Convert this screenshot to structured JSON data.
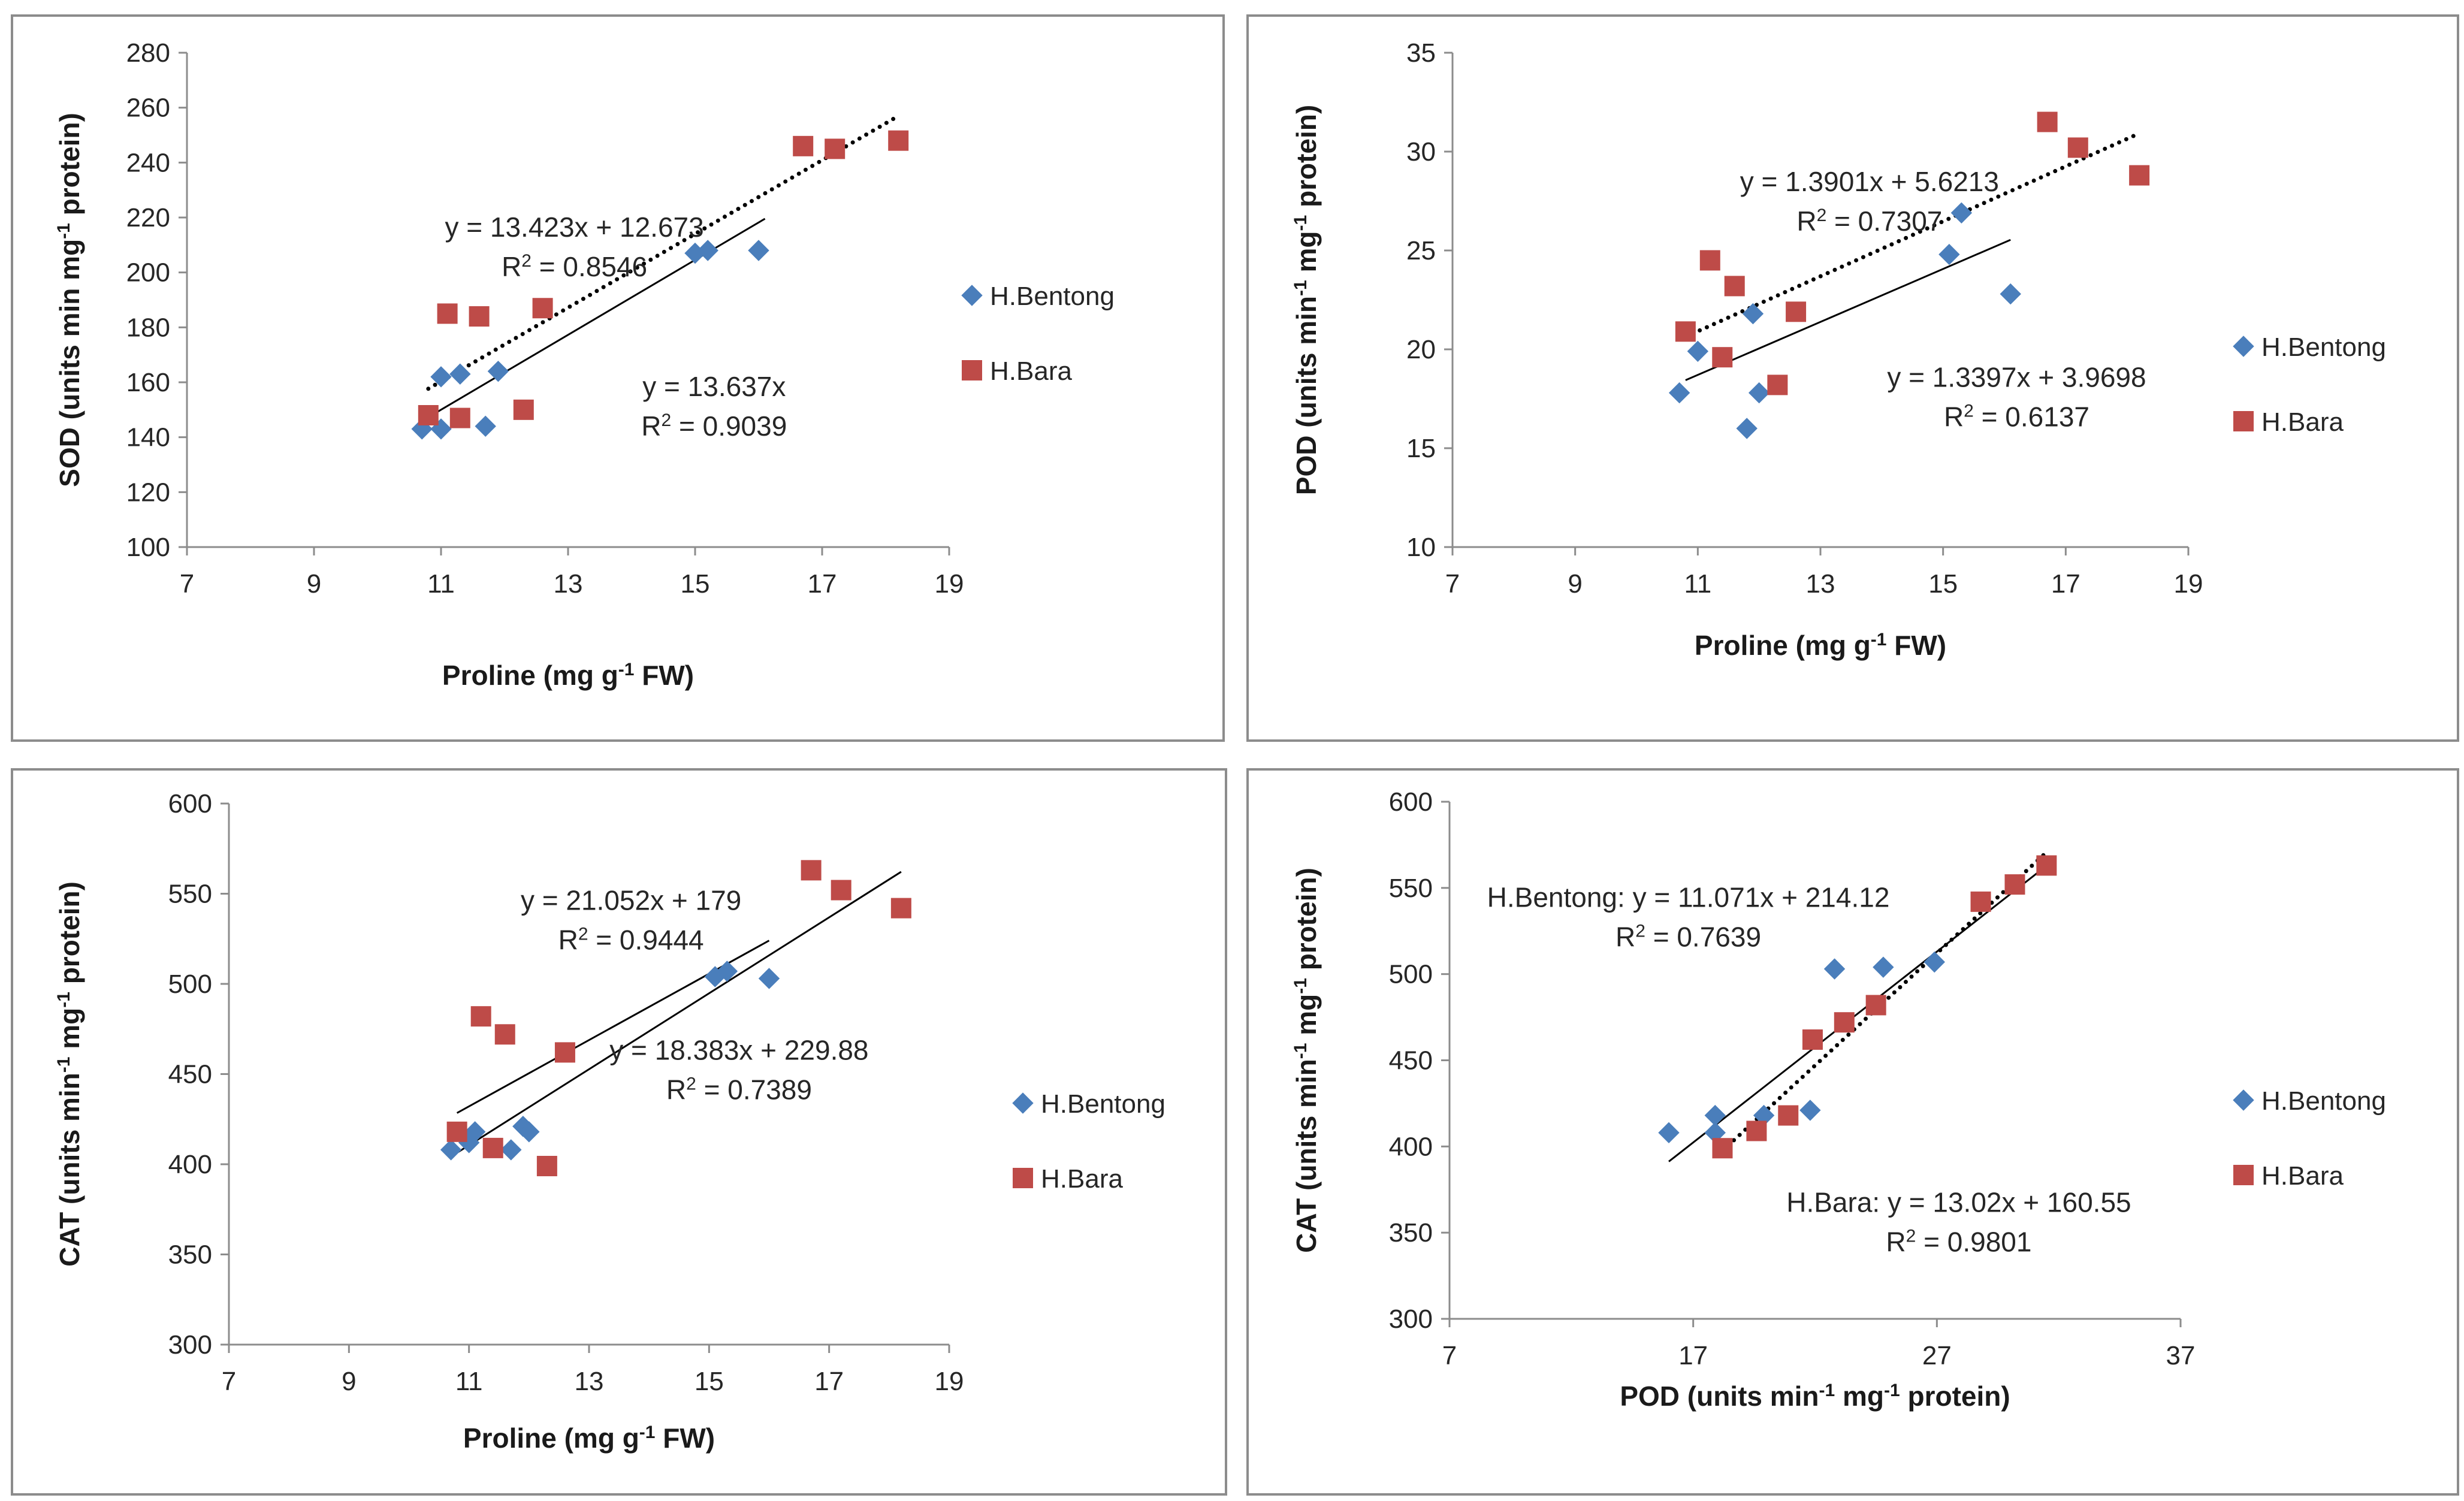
{
  "chart_data": [
    {
      "type": "scatter",
      "title": "",
      "xlabel": "Proline (mg g-1 FW)",
      "xlabel_parts": [
        "Proline (mg g",
        "-1",
        " FW)"
      ],
      "ylabel": "SOD (units min mg-1 protein)",
      "ylabel_parts": [
        "SOD (units min mg",
        "-1",
        " protein)"
      ],
      "xlim": [
        7,
        19
      ],
      "ylim": [
        100,
        280
      ],
      "xticks": [
        7,
        9,
        11,
        13,
        15,
        17,
        19
      ],
      "yticks": [
        100,
        120,
        140,
        160,
        180,
        200,
        220,
        240,
        260,
        280
      ],
      "legend": "right",
      "series": [
        {
          "name": "H.Bentong",
          "marker": "diamond",
          "color": "#4a7ebb",
          "x": [
            10.7,
            11.0,
            11.0,
            11.3,
            11.7,
            11.9,
            15.0,
            15.2,
            16.0
          ],
          "y": [
            143,
            143,
            162,
            163,
            144,
            164,
            207,
            208,
            208
          ],
          "trend": {
            "slope": 13.637,
            "intercept": 0,
            "from": 10.8,
            "to": 16.1,
            "style": "solid"
          }
        },
        {
          "name": "H.Bara",
          "marker": "square",
          "color": "#be4b48",
          "x": [
            10.8,
            11.1,
            11.3,
            11.6,
            12.3,
            12.6,
            16.7,
            17.2,
            18.2
          ],
          "y": [
            148,
            185,
            147,
            184,
            150,
            187,
            246,
            245,
            248
          ],
          "trend": {
            "slope": 13.423,
            "intercept": 12.673,
            "from": 10.8,
            "to": 18.2,
            "style": "dotted"
          }
        }
      ],
      "annotations": [
        {
          "eq_parts": [
            "y = 13.423x + 12.673"
          ],
          "r2": "= 0.8546",
          "x": 13.1,
          "y": 213
        },
        {
          "eq_parts": [
            "y = 13.637x"
          ],
          "r2": "= 0.9039",
          "x": 15.3,
          "y": 155
        }
      ]
    },
    {
      "type": "scatter",
      "title": "",
      "xlabel": "Proline (mg g-1 FW)",
      "xlabel_parts": [
        "Proline (mg g",
        "-1",
        " FW)"
      ],
      "ylabel": "POD (units min-1 mg-1 protein)",
      "ylabel_parts": [
        "POD (units min",
        "-1",
        " mg",
        "-1",
        " protein)"
      ],
      "xlim": [
        7,
        19
      ],
      "ylim": [
        10,
        35
      ],
      "xticks": [
        7,
        9,
        11,
        13,
        15,
        17,
        19
      ],
      "yticks": [
        10,
        15,
        20,
        25,
        30,
        35
      ],
      "legend": "right",
      "series": [
        {
          "name": "H.Bentong",
          "marker": "diamond",
          "color": "#4a7ebb",
          "x": [
            10.7,
            11.0,
            11.8,
            11.9,
            12.0,
            15.1,
            15.3,
            16.1
          ],
          "y": [
            17.8,
            19.9,
            16.0,
            21.8,
            17.8,
            24.8,
            26.9,
            22.8
          ],
          "trend": {
            "slope": 1.3397,
            "intercept": 3.9698,
            "from": 10.8,
            "to": 16.1,
            "style": "solid"
          }
        },
        {
          "name": "H.Bara",
          "marker": "square",
          "color": "#be4b48",
          "x": [
            10.8,
            11.2,
            11.4,
            11.6,
            12.3,
            12.6,
            16.7,
            17.2,
            18.2
          ],
          "y": [
            20.9,
            24.5,
            19.6,
            23.2,
            18.2,
            21.9,
            31.5,
            30.2,
            28.8
          ],
          "trend": {
            "slope": 1.3901,
            "intercept": 5.6213,
            "from": 10.8,
            "to": 18.2,
            "style": "dotted"
          }
        }
      ],
      "annotations": [
        {
          "eq_parts": [
            "y = 1.3901x + 5.6213"
          ],
          "r2": "= 0.7307",
          "x": 13.8,
          "y": 28.0
        },
        {
          "eq_parts": [
            "y = 1.3397x + 3.9698"
          ],
          "r2": "= 0.6137",
          "x": 16.2,
          "y": 18.1
        }
      ]
    },
    {
      "type": "scatter",
      "title": "",
      "xlabel": "Proline (mg g-1 FW)",
      "xlabel_parts": [
        "Proline (mg g",
        "-1",
        " FW)"
      ],
      "ylabel": "CAT (units min-1 mg-1 protein)",
      "ylabel_parts": [
        "CAT (units min",
        "-1",
        " mg",
        "-1",
        " protein)"
      ],
      "xlim": [
        7,
        19
      ],
      "ylim": [
        300,
        600
      ],
      "xticks": [
        7,
        9,
        11,
        13,
        15,
        17,
        19
      ],
      "yticks": [
        300,
        350,
        400,
        450,
        500,
        550,
        600
      ],
      "legend": "right",
      "series": [
        {
          "name": "H.Bentong",
          "marker": "diamond",
          "color": "#4a7ebb",
          "x": [
            10.7,
            11.0,
            11.1,
            11.7,
            11.9,
            12.0,
            15.1,
            15.3,
            16.0
          ],
          "y": [
            408,
            412,
            418,
            408,
            421,
            418,
            504,
            507,
            503
          ],
          "trend": {
            "slope": 18.383,
            "intercept": 229.88,
            "from": 10.8,
            "to": 16.0,
            "style": "solid"
          }
        },
        {
          "name": "H.Bara",
          "marker": "square",
          "color": "#be4b48",
          "x": [
            10.8,
            11.2,
            11.4,
            11.6,
            12.3,
            12.6,
            16.7,
            17.2,
            18.2
          ],
          "y": [
            418,
            482,
            409,
            472,
            399,
            462,
            563,
            552,
            542
          ],
          "trend": {
            "slope": 21.052,
            "intercept": 179,
            "from": 10.8,
            "to": 18.2,
            "style": "solid"
          }
        }
      ],
      "annotations": [
        {
          "eq_parts": [
            "y = 21.052x + 179"
          ],
          "r2": "= 0.9444",
          "x": 13.7,
          "y": 541
        },
        {
          "eq_parts": [
            "y = 18.383x + 229.88"
          ],
          "r2": "= 0.7389",
          "x": 15.5,
          "y": 458
        }
      ]
    },
    {
      "type": "scatter",
      "title": "",
      "xlabel": "POD (units min-1 mg-1 protein)",
      "xlabel_parts": [
        "POD (units min",
        "-1",
        " mg",
        "-1",
        " protein)"
      ],
      "ylabel": "CAT (units min-1 mg-1 protein)",
      "ylabel_parts": [
        "CAT (units min",
        "-1",
        " mg",
        "-1",
        " protein)"
      ],
      "xlim": [
        7,
        37
      ],
      "ylim": [
        300,
        600
      ],
      "xticks": [
        7,
        17,
        27,
        37
      ],
      "yticks": [
        300,
        350,
        400,
        450,
        500,
        550,
        600
      ],
      "legend": "right",
      "series": [
        {
          "name": "H.Bentong",
          "marker": "diamond",
          "color": "#4a7ebb",
          "x": [
            16.0,
            17.9,
            17.9,
            19.9,
            21.8,
            22.8,
            24.8,
            26.9
          ],
          "y": [
            408,
            418,
            408,
            418,
            421,
            503,
            504,
            507
          ],
          "trend": {
            "slope": 11.071,
            "intercept": 214.12,
            "from": 16.0,
            "to": 31.5,
            "style": "solid"
          }
        },
        {
          "name": "H.Bara",
          "marker": "square",
          "color": "#be4b48",
          "x": [
            18.2,
            19.6,
            20.9,
            21.9,
            23.2,
            24.5,
            28.8,
            30.2,
            31.5
          ],
          "y": [
            399,
            409,
            418,
            462,
            472,
            482,
            542,
            552,
            563
          ],
          "trend": {
            "slope": 13.02,
            "intercept": 160.55,
            "from": 18.2,
            "to": 31.5,
            "style": "dotted"
          }
        }
      ],
      "annotations": [
        {
          "eq_parts": [
            "H.Bentong: y = 11.071x + 214.12"
          ],
          "r2": "= 0.7639",
          "x": 16.8,
          "y": 539
        },
        {
          "eq_parts": [
            "H.Bara: y = 13.02x + 160.55"
          ],
          "r2": "= 0.9801",
          "x": 27.9,
          "y": 362
        }
      ]
    }
  ]
}
